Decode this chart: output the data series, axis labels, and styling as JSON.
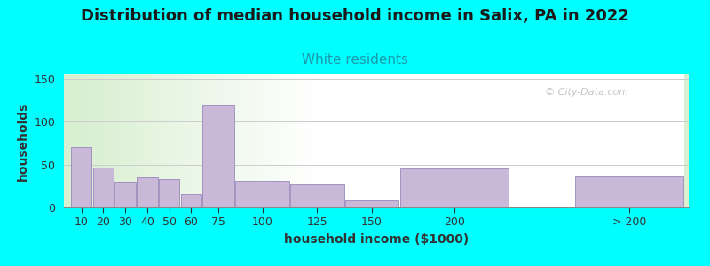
{
  "title": "Distribution of median household income in Salix, PA in 2022",
  "subtitle": "White residents",
  "xlabel": "household income ($1000)",
  "ylabel": "households",
  "background_color": "#00FFFF",
  "plot_bg_left": "#d8efd0",
  "plot_bg_right": "#f0f0f0",
  "bar_color": "#C9B8D8",
  "bar_edge_color": "#9988BB",
  "categories": [
    "10",
    "20",
    "30",
    "40",
    "50",
    "60",
    "75",
    "100",
    "125",
    "150",
    "200",
    "> 200"
  ],
  "values": [
    70,
    46,
    30,
    35,
    33,
    16,
    120,
    31,
    27,
    8,
    45,
    36
  ],
  "lefts": [
    0,
    10,
    20,
    30,
    40,
    50,
    60,
    75,
    100,
    125,
    150,
    230
  ],
  "widths": [
    10,
    10,
    10,
    10,
    10,
    10,
    15,
    25,
    25,
    25,
    50,
    50
  ],
  "ylim": [
    0,
    155
  ],
  "yticks": [
    0,
    50,
    100,
    150
  ],
  "watermark": "© City-Data.com",
  "title_fontsize": 13,
  "subtitle_fontsize": 11,
  "subtitle_color": "#1a9aaa",
  "axis_label_fontsize": 10,
  "tick_fontsize": 9
}
